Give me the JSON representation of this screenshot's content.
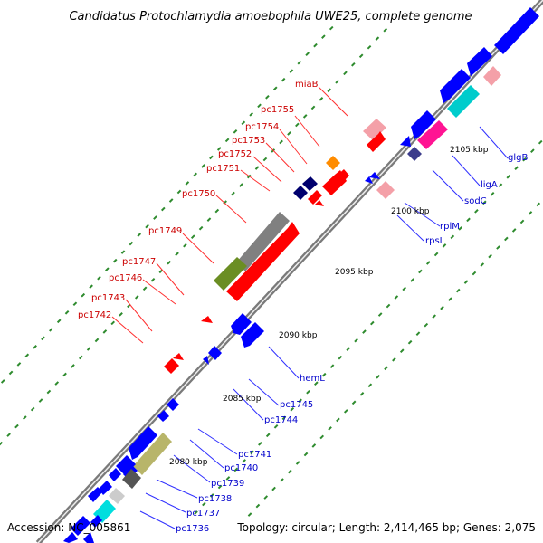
{
  "title": "Candidatus Protochlamydia amoebophila UWE25, complete genome",
  "footer": {
    "accession": "Accession: NC_005861",
    "topology": "Topology: circular; Length: 2,414,465 bp; Genes: 2,075"
  },
  "kbp_marks": [
    {
      "label": "2080 kbp"
    },
    {
      "label": "2085 kbp"
    },
    {
      "label": "2090 kbp"
    },
    {
      "label": "2095 kbp"
    },
    {
      "label": "2100 kbp"
    },
    {
      "label": "2105 kbp"
    }
  ],
  "genes_top": [
    {
      "label": "miaB"
    },
    {
      "label": "pc1755"
    },
    {
      "label": "pc1754"
    },
    {
      "label": "pc1753"
    },
    {
      "label": "pc1752"
    },
    {
      "label": "pc1751"
    },
    {
      "label": "pc1750"
    },
    {
      "label": "pc1749"
    },
    {
      "label": "pc1747"
    },
    {
      "label": "pc1746"
    },
    {
      "label": "pc1743"
    },
    {
      "label": "pc1742"
    }
  ],
  "genes_bottom": [
    {
      "label": "glgB"
    },
    {
      "label": "ligA"
    },
    {
      "label": "sodC"
    },
    {
      "label": "rplM"
    },
    {
      "label": "rpsI"
    },
    {
      "label": "hemL"
    },
    {
      "label": "pc1745"
    },
    {
      "label": "pc1744"
    },
    {
      "label": "pc1741"
    },
    {
      "label": "pc1740"
    },
    {
      "label": "pc1739"
    },
    {
      "label": "pc1738"
    },
    {
      "label": "pc1737"
    },
    {
      "label": "pc1736"
    }
  ],
  "colors": {
    "top_label": "#cc0000",
    "bottom_label": "#0000cc",
    "forward_gene": "#ff0000",
    "reverse_gene": "#0000ff",
    "tick": "#2e8b2e"
  }
}
